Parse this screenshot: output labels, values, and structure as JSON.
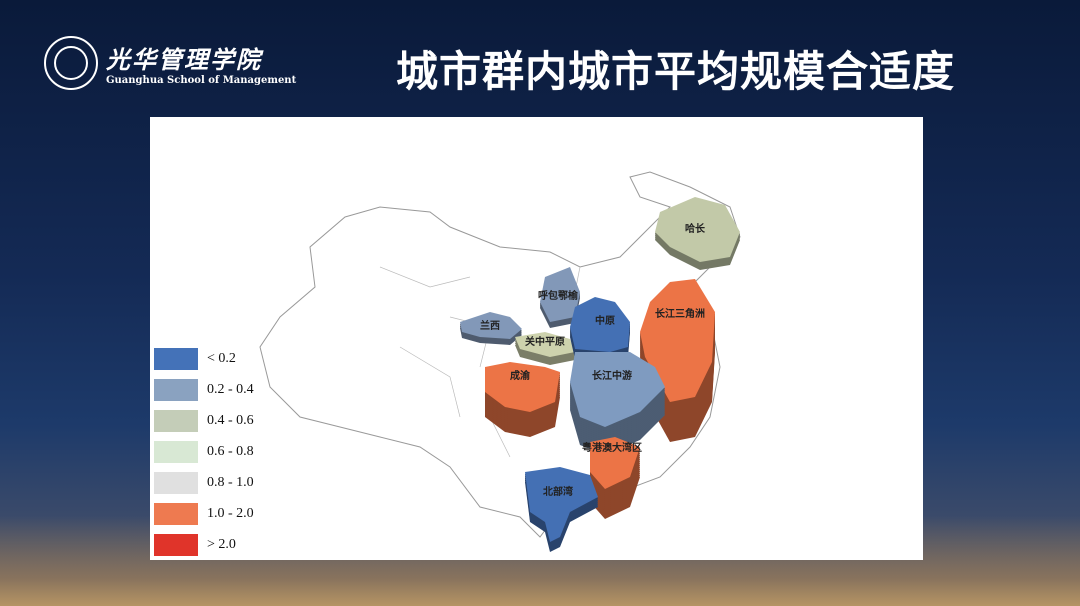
{
  "header": {
    "logo_cn": "光华管理学院",
    "logo_en": "Guanghua School of Management",
    "title": "城市群内城市平均规模合适度"
  },
  "legend": [
    {
      "label": "< 0.2",
      "color": "#4472b8"
    },
    {
      "label": "0.2 - 0.4",
      "color": "#8aa2c0"
    },
    {
      "label": "0.4 - 0.6",
      "color": "#c4cdb8"
    },
    {
      "label": "0.6 - 0.8",
      "color": "#d8e8d4"
    },
    {
      "label": "0.8 - 1.0",
      "color": "#e0e0e0"
    },
    {
      "label": "1.0 - 2.0",
      "color": "#ee7a50"
    },
    {
      "label": "> 2.0",
      "color": "#e0342a"
    }
  ],
  "regions": [
    {
      "name": "哈长",
      "class": "0.4 - 0.6",
      "color": "#c2c9a8"
    },
    {
      "name": "呼包鄂榆",
      "class": "0.2 - 0.4",
      "color": "#8298b8"
    },
    {
      "name": "兰西",
      "class": "0.2 - 0.4",
      "color": "#8298b8"
    },
    {
      "name": "关中平原",
      "class": "0.4 - 0.6",
      "color": "#cdd2ad"
    },
    {
      "name": "中原",
      "class": "< 0.2",
      "color": "#4470b4"
    },
    {
      "name": "长江三角洲",
      "class": "1.0 - 2.0",
      "color": "#ec7446"
    },
    {
      "name": "成渝",
      "class": "1.0 - 2.0",
      "color": "#ec7446"
    },
    {
      "name": "长江中游",
      "class": "0.2 - 0.4",
      "color": "#7f9bc0"
    },
    {
      "name": "粤港澳大湾区",
      "class": "1.0 - 2.0",
      "color": "#ec7446"
    },
    {
      "name": "北部湾",
      "class": "< 0.2",
      "color": "#4470b4"
    }
  ]
}
